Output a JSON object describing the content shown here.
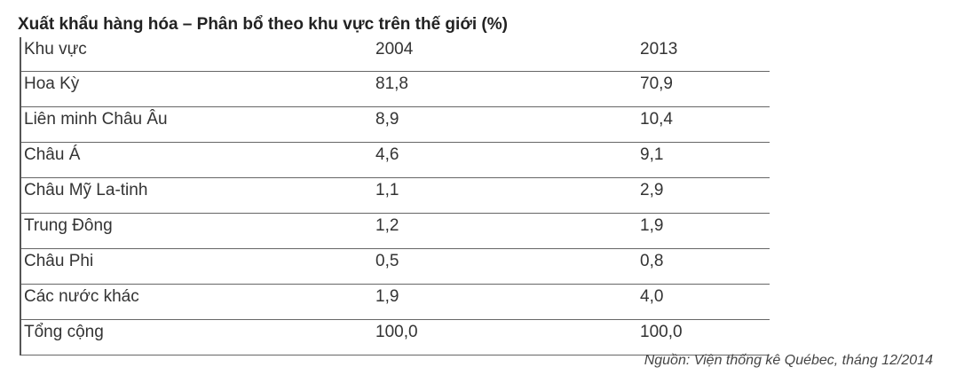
{
  "title": "Xuất khẩu hàng hóa – Phân bổ theo khu vực trên thế giới (%)",
  "table": {
    "header": [
      "Khu vực",
      "2004",
      "2013"
    ],
    "rows": [
      [
        "Hoa Kỳ",
        "81,8",
        "70,9"
      ],
      [
        "Liên minh Châu Âu",
        "8,9",
        "10,4"
      ],
      [
        "Châu Á",
        "4,6",
        "9,1"
      ],
      [
        "Châu Mỹ La-tinh",
        "1,1",
        "2,9"
      ],
      [
        "Trung Đông",
        "1,2",
        "1,9"
      ],
      [
        "Châu Phi",
        "0,5",
        "0,8"
      ],
      [
        "Các nước khác",
        "1,9",
        "4,0"
      ],
      [
        "Tổng cộng",
        "100,0",
        "100,0"
      ]
    ]
  },
  "source": "Nguồn: Viện thống kê Québec, tháng 12/2014"
}
